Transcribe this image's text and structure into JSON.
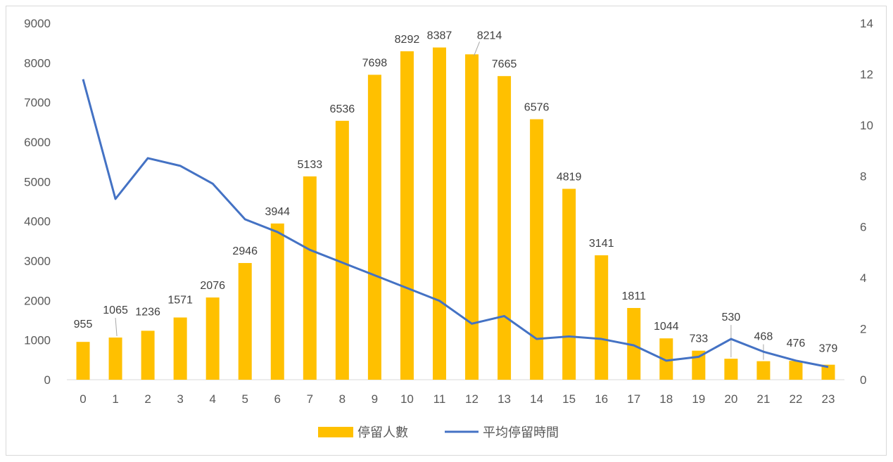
{
  "chart_data": {
    "type": "bar",
    "categories": [
      "0",
      "1",
      "2",
      "3",
      "4",
      "5",
      "6",
      "7",
      "8",
      "9",
      "10",
      "11",
      "12",
      "13",
      "14",
      "15",
      "16",
      "17",
      "18",
      "19",
      "20",
      "21",
      "22",
      "23"
    ],
    "series": [
      {
        "name": "停留人數",
        "type": "bar",
        "axis": "left",
        "color": "#FFC000",
        "values": [
          955,
          1065,
          1236,
          1571,
          2076,
          2946,
          3944,
          5133,
          6536,
          7698,
          8292,
          8387,
          8214,
          7665,
          6576,
          4819,
          3141,
          1811,
          1044,
          733,
          530,
          468,
          476,
          379
        ]
      },
      {
        "name": "平均停留時間",
        "type": "line",
        "axis": "right",
        "color": "#4472C4",
        "values": [
          11.8,
          7.1,
          8.7,
          8.4,
          7.7,
          6.3,
          5.8,
          5.1,
          4.6,
          4.1,
          3.6,
          3.1,
          2.2,
          2.5,
          1.6,
          1.7,
          1.6,
          1.35,
          0.75,
          0.9,
          1.6,
          1.1,
          0.75,
          0.5
        ]
      }
    ],
    "left_axis": {
      "ylim": [
        0,
        9000
      ],
      "ticks": [
        "0",
        "1000",
        "2000",
        "3000",
        "4000",
        "5000",
        "6000",
        "7000",
        "8000",
        "9000"
      ]
    },
    "right_axis": {
      "ylim": [
        0,
        14
      ],
      "ticks": [
        "0",
        "2",
        "4",
        "6",
        "8",
        "10",
        "12",
        "14"
      ]
    },
    "grid": false,
    "legend": "bottom",
    "data_labels": [
      "955",
      "1065",
      "1236",
      "1571",
      "2076",
      "2946",
      "3944",
      "5133",
      "6536",
      "7698",
      "8292",
      "8387",
      "8214",
      "7665",
      "6576",
      "4819",
      "3141",
      "1811",
      "1044",
      "733",
      "530",
      "468",
      "476",
      "379"
    ]
  }
}
